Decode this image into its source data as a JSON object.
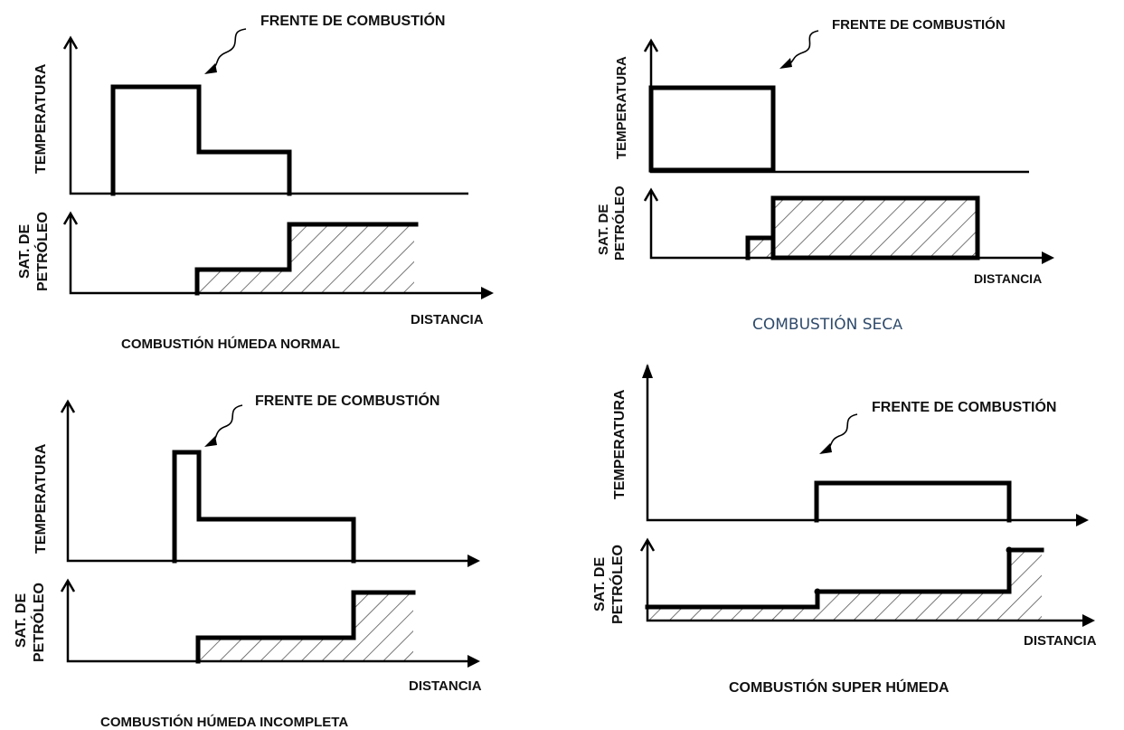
{
  "labels": {
    "frente": "FRENTE DE COMBUSTIÓN",
    "temperatura": "TEMPERATURA",
    "sat_line1": "SAT. DE",
    "sat_line2": "PETRÓLEO",
    "distancia": "DISTANCIA"
  },
  "panels": {
    "top_left": {
      "caption": "COMBUSTIÓN HÚMEDA NORMAL"
    },
    "top_right": {
      "caption_a": "COMBUSTIÓN SEC",
      "caption_b": "A"
    },
    "bottom_left": {
      "caption": "COMBUSTIÓN HÚMEDA INCOMPLETA"
    },
    "bottom_right": {
      "caption": "COMBUSTIÓN SUPER HÚMEDA"
    }
  },
  "colors": {
    "line": "#000000",
    "hatch": "#555555",
    "caption_blue": "#2e4a6b"
  }
}
